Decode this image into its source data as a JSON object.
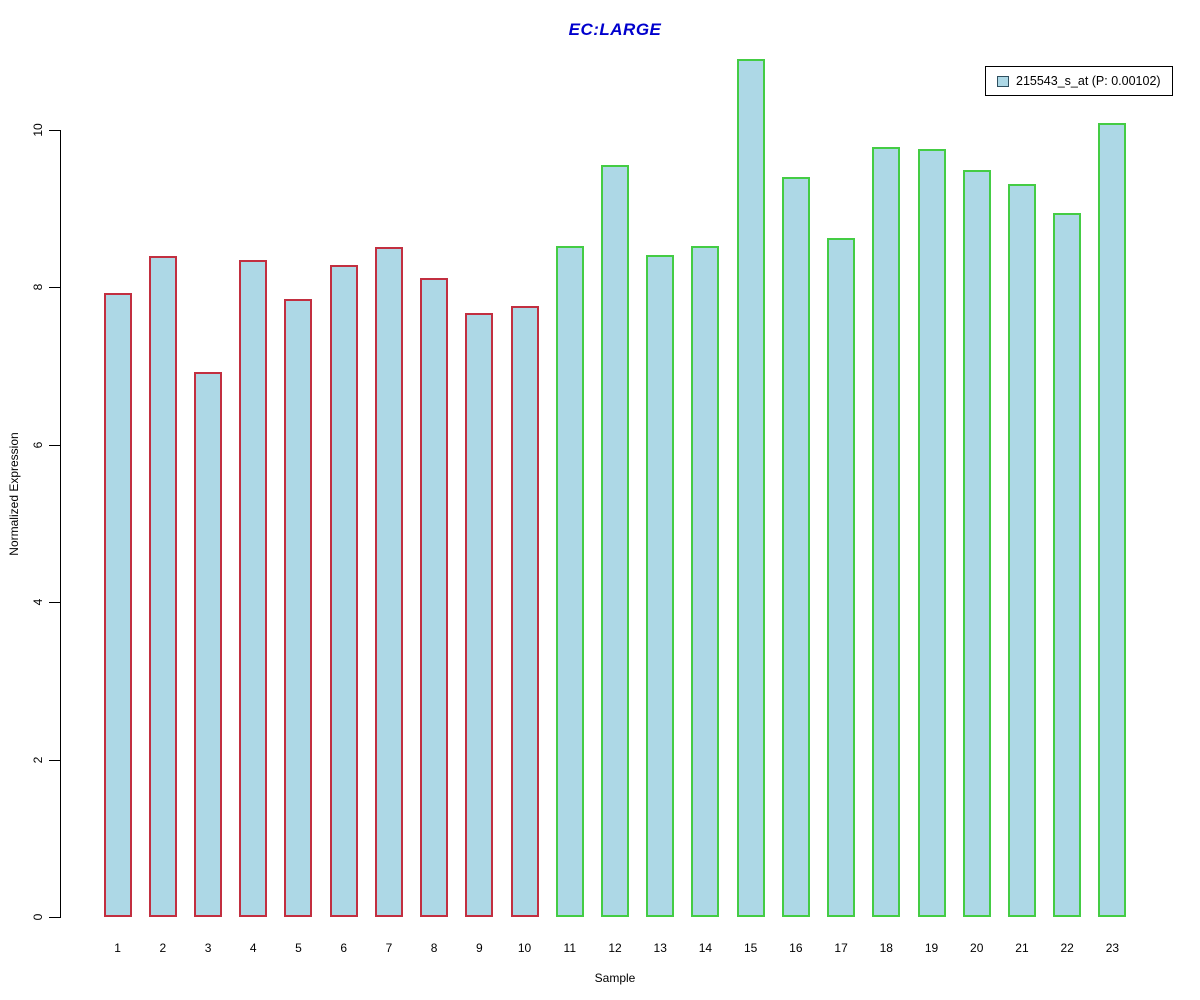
{
  "title": {
    "text": "EC:LARGE",
    "color": "#0000CD"
  },
  "axes": {
    "ylabel": "Normalized Expression",
    "xlabel": "Sample"
  },
  "legend": {
    "label": "215543_s_at (P: 0.00102)",
    "swatch_fill": "#ADD8E6",
    "swatch_border": "#2F4F5F"
  },
  "chart_data": {
    "type": "bar",
    "title": "EC:LARGE",
    "xlabel": "Sample",
    "ylabel": "Normalized Expression",
    "ylim": [
      0,
      11.2
    ],
    "yticks": [
      0,
      2,
      4,
      6,
      8,
      10
    ],
    "grid": false,
    "legend_position": "top-right",
    "legend_entries": [
      "215543_s_at (P: 0.00102)"
    ],
    "categories": [
      "1",
      "2",
      "3",
      "4",
      "5",
      "6",
      "7",
      "8",
      "9",
      "10",
      "11",
      "12",
      "13",
      "14",
      "15",
      "16",
      "17",
      "18",
      "19",
      "20",
      "21",
      "22",
      "23"
    ],
    "values": [
      7.93,
      8.4,
      6.92,
      8.35,
      7.85,
      8.28,
      8.51,
      8.12,
      7.68,
      7.76,
      8.52,
      9.55,
      8.41,
      8.52,
      10.9,
      9.4,
      8.63,
      9.78,
      9.76,
      9.49,
      9.31,
      8.94,
      10.09
    ],
    "bar_fill": "#ADD8E6",
    "groups": [
      {
        "name": "samples-1-10",
        "start_index": 0,
        "end_index": 9,
        "border_color": "#C22F40"
      },
      {
        "name": "samples-11-23",
        "start_index": 10,
        "end_index": 22,
        "border_color": "#44CC44"
      }
    ]
  }
}
